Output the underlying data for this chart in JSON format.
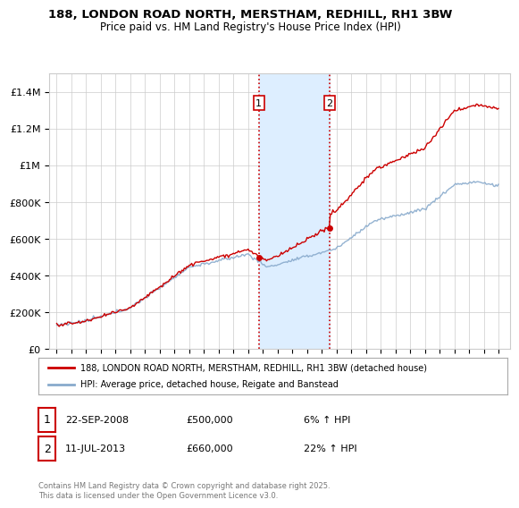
{
  "title1": "188, LONDON ROAD NORTH, MERSTHAM, REDHILL, RH1 3BW",
  "title2": "Price paid vs. HM Land Registry's House Price Index (HPI)",
  "legend_line1": "188, LONDON ROAD NORTH, MERSTHAM, REDHILL, RH1 3BW (detached house)",
  "legend_line2": "HPI: Average price, detached house, Reigate and Banstead",
  "annotation1_label": "1",
  "annotation1_date": "22-SEP-2008",
  "annotation1_price": "£500,000",
  "annotation1_hpi": "6% ↑ HPI",
  "annotation2_label": "2",
  "annotation2_date": "11-JUL-2013",
  "annotation2_price": "£660,000",
  "annotation2_hpi": "22% ↑ HPI",
  "footnote": "Contains HM Land Registry data © Crown copyright and database right 2025.\nThis data is licensed under the Open Government Licence v3.0.",
  "sale1_x": 2008.73,
  "sale1_y": 500000,
  "sale2_x": 2013.53,
  "sale2_y": 660000,
  "vline1_x": 2008.73,
  "vline2_x": 2013.53,
  "shade_xmin": 2008.73,
  "shade_xmax": 2013.53,
  "red_color": "#cc0000",
  "blue_color": "#88aacc",
  "shade_color": "#ddeeff",
  "vline_color": "#cc0000",
  "background_color": "#ffffff",
  "grid_color": "#cccccc",
  "ylim_min": 0,
  "ylim_max": 1500000,
  "xlim_min": 1994.5,
  "xlim_max": 2025.8,
  "yticks": [
    0,
    200000,
    400000,
    600000,
    800000,
    1000000,
    1200000,
    1400000
  ],
  "ytick_labels": [
    "£0",
    "£200K",
    "£400K",
    "£600K",
    "£800K",
    "£1M",
    "£1.2M",
    "£1.4M"
  ]
}
